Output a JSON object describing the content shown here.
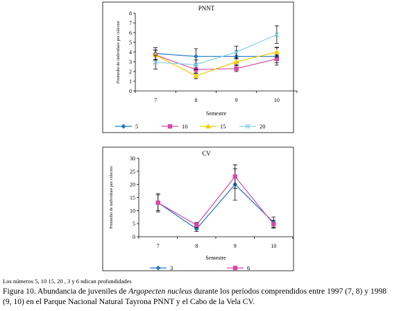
{
  "chart_data": [
    {
      "type": "line",
      "title": "PNNT",
      "xlabel": "Semestre",
      "ylabel": "Promedio de individuos por colector",
      "categories": [
        "7",
        "8",
        "9",
        "10"
      ],
      "ylim": [
        0,
        8
      ],
      "yticks": [
        "0",
        "1",
        "2",
        "3",
        "4",
        "5",
        "6",
        "7",
        "8"
      ],
      "legend_position": "bottom",
      "series": [
        {
          "name": "5",
          "color": "#1f77c0",
          "marker": "diamond",
          "values": [
            3.85,
            3.55,
            3.55,
            3.55
          ],
          "err": [
            0.6,
            0.8,
            0.6,
            0.9
          ]
        },
        {
          "name": "10",
          "color": "#d64aa4",
          "marker": "square",
          "values": [
            3.7,
            2.2,
            2.3,
            3.3
          ],
          "err": [
            0.5,
            0.4,
            0.3,
            0.4
          ]
        },
        {
          "name": "15",
          "color": "#f2cc00",
          "marker": "triangle",
          "values": [
            3.7,
            1.55,
            3.0,
            4.0
          ],
          "err": [
            0.5,
            0.3,
            0.3,
            0.5
          ]
        },
        {
          "name": "20",
          "color": "#7fd0ea",
          "marker": "x",
          "values": [
            2.95,
            2.7,
            4.0,
            5.8
          ],
          "err": [
            0.7,
            0.5,
            0.6,
            0.9
          ]
        }
      ]
    },
    {
      "type": "line",
      "title": "CV",
      "xlabel": "Semestre",
      "ylabel": "Promedio de individuos por colector",
      "categories": [
        "7",
        "8",
        "9",
        "10"
      ],
      "ylim": [
        0,
        30
      ],
      "yticks": [
        "0",
        "5",
        "10",
        "15",
        "20",
        "25",
        "30"
      ],
      "legend_position": "bottom",
      "series": [
        {
          "name": "3",
          "color": "#1f77c0",
          "marker": "diamond",
          "values": [
            13.0,
            3.0,
            20.0,
            5.5
          ],
          "err": [
            3.5,
            1.0,
            6.0,
            2.0
          ]
        },
        {
          "name": "6",
          "color": "#d64aa4",
          "marker": "square",
          "values": [
            13.0,
            4.5,
            23.0,
            4.8
          ],
          "err": [
            3.0,
            1.0,
            4.5,
            1.5
          ]
        }
      ]
    }
  ],
  "notes": "Los números 5, 10 15, 20 , 3 y 6 ndican profundidades",
  "caption": {
    "part1": "Figura 10. Abundancia de juveniles de ",
    "species": "Argopecten nucleus",
    "part2": " durante los períodos comprendidos entre 1997 (7, 8) y 1998 (9, 10) en el Parque Nacional Natural Tayrona PNNT y el Cabo de la Vela CV."
  }
}
